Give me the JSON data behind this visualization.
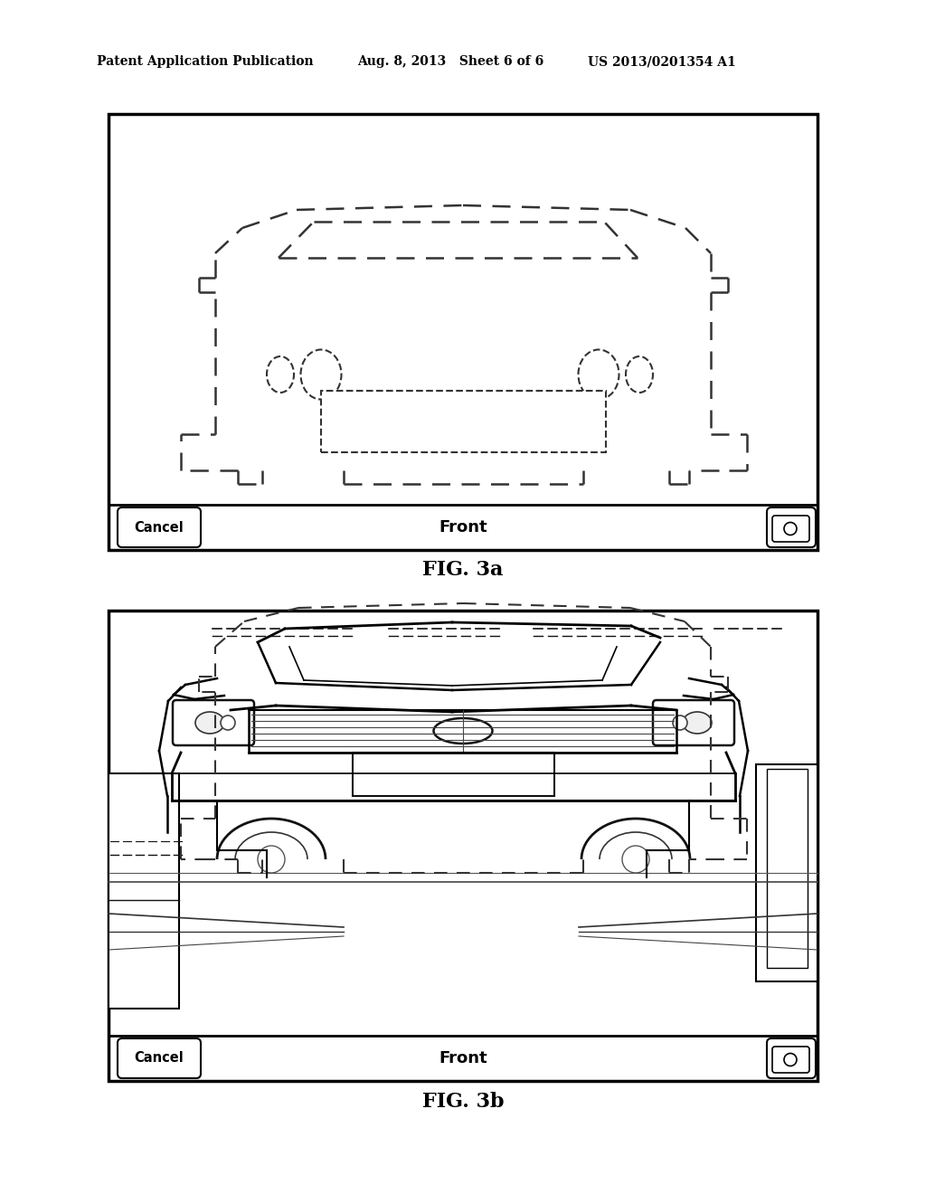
{
  "header_left": "Patent Application Publication",
  "header_mid": "Aug. 8, 2013   Sheet 6 of 6",
  "header_right": "US 2013/0201354 A1",
  "fig3a_label": "FIG. 3a",
  "fig3b_label": "FIG. 3b",
  "cancel_text": "Cancel",
  "front_text": "Front",
  "bg_color": "#ffffff",
  "line_color": "#000000",
  "dashed_color": "#333333"
}
